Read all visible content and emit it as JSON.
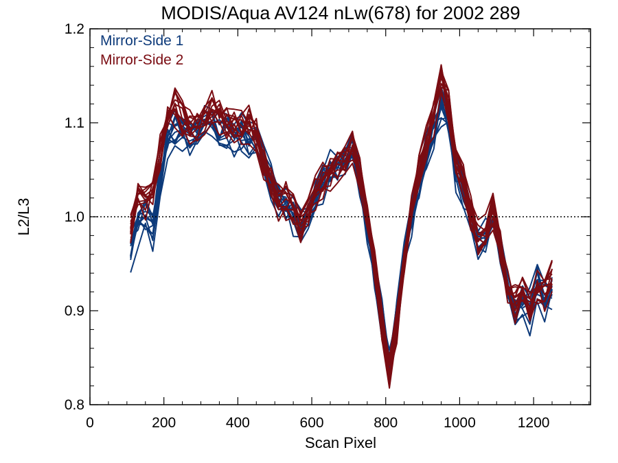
{
  "chart_data": {
    "type": "line",
    "title": "MODIS/Aqua AV124 nLw(678) for 2002 289",
    "xlabel": "Scan Pixel",
    "ylabel": "L2/L3",
    "xlim": [
      0,
      1354
    ],
    "ylim": [
      0.8,
      1.2
    ],
    "x_ticks": [
      0,
      200,
      400,
      600,
      800,
      1000,
      1200
    ],
    "x_tick_labels": [
      "0",
      "200",
      "400",
      "600",
      "800",
      "1000",
      "1200"
    ],
    "y_ticks": [
      0.8,
      0.9,
      1.0,
      1.1,
      1.2
    ],
    "y_tick_labels": [
      "0.8",
      "0.9",
      "1.0",
      "1.1",
      "1.2"
    ],
    "grid": false,
    "reference_line": {
      "y": 1.0,
      "style": "dotted"
    },
    "legend_placement": "top-left",
    "x": [
      110,
      130,
      150,
      170,
      190,
      210,
      230,
      250,
      270,
      290,
      310,
      330,
      350,
      370,
      390,
      410,
      430,
      450,
      470,
      490,
      510,
      530,
      550,
      570,
      590,
      610,
      630,
      650,
      670,
      690,
      710,
      730,
      750,
      770,
      790,
      810,
      830,
      850,
      870,
      890,
      910,
      930,
      950,
      970,
      990,
      1010,
      1030,
      1050,
      1070,
      1090,
      1110,
      1130,
      1150,
      1170,
      1190,
      1210,
      1230,
      1250
    ],
    "series": [
      {
        "name": "Mirror-Side 1",
        "color": "#0d3a7a",
        "values": [
          0.96,
          0.99,
          1.0,
          0.99,
          1.04,
          1.08,
          1.09,
          1.09,
          1.08,
          1.09,
          1.1,
          1.1,
          1.09,
          1.09,
          1.09,
          1.09,
          1.08,
          1.08,
          1.06,
          1.04,
          1.02,
          1.01,
          1.0,
          0.99,
          1.0,
          1.02,
          1.04,
          1.05,
          1.05,
          1.06,
          1.07,
          1.04,
          0.99,
          0.94,
          0.89,
          0.84,
          0.89,
          0.96,
          1.0,
          1.04,
          1.07,
          1.09,
          1.12,
          1.1,
          1.05,
          1.03,
          1.0,
          0.97,
          0.98,
          1.0,
          0.97,
          0.92,
          0.9,
          0.91,
          0.9,
          0.93,
          0.91,
          0.92
        ]
      },
      {
        "name": "Mirror-Side 2",
        "color": "#7a0c12",
        "values": [
          0.99,
          1.03,
          1.02,
          1.03,
          1.07,
          1.11,
          1.12,
          1.11,
          1.1,
          1.1,
          1.11,
          1.12,
          1.11,
          1.1,
          1.1,
          1.1,
          1.1,
          1.09,
          1.06,
          1.04,
          1.02,
          1.02,
          1.01,
          0.99,
          1.01,
          1.03,
          1.04,
          1.05,
          1.06,
          1.07,
          1.08,
          1.05,
          1.0,
          0.95,
          0.89,
          0.84,
          0.89,
          0.96,
          1.01,
          1.05,
          1.08,
          1.11,
          1.15,
          1.12,
          1.06,
          1.04,
          1.01,
          0.98,
          0.99,
          1.01,
          0.97,
          0.93,
          0.91,
          0.92,
          0.91,
          0.93,
          0.92,
          0.94
        ]
      }
    ]
  }
}
